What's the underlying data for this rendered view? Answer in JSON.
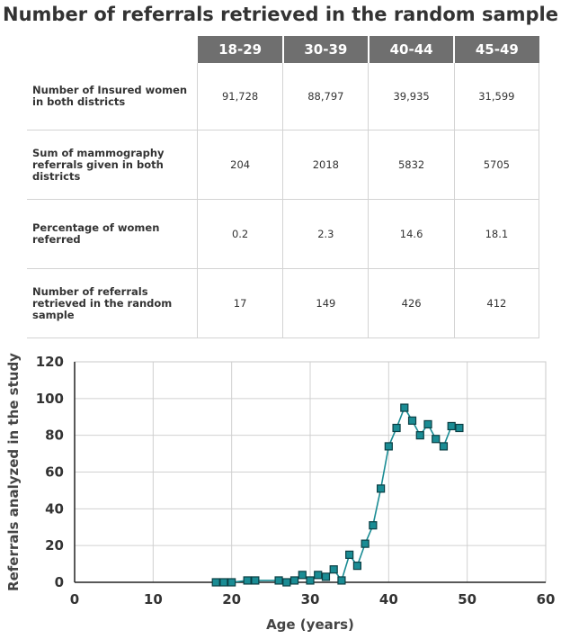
{
  "title": "Number of referrals retrieved in the random sample",
  "table": {
    "columns": [
      "18-29",
      "30-39",
      "40-44",
      "45-49"
    ],
    "rows": [
      {
        "label": "Number of Insured women in both districts",
        "values": [
          "91,728",
          "88,797",
          "39,935",
          "31,599"
        ]
      },
      {
        "label": "Sum of mammography referrals given in both districts",
        "values": [
          "204",
          "2018",
          "5832",
          "5705"
        ]
      },
      {
        "label": "Percentage of women referred",
        "values": [
          "0.2",
          "2.3",
          "14.6",
          "18.1"
        ]
      },
      {
        "label": "Number of referrals retrieved in the random sample",
        "values": [
          "17",
          "149",
          "426",
          "412"
        ]
      }
    ]
  },
  "colors": {
    "header_bg": "#6f6f6f",
    "marker_fill": "#1a8c94",
    "line": "#1a8c94",
    "grid": "#d0d0d0"
  },
  "chart_data": {
    "type": "line",
    "title": "",
    "xlabel": "Age (years)",
    "ylabel": "Referrals analyzed in the study",
    "xlim": [
      0,
      60
    ],
    "ylim": [
      0,
      120
    ],
    "xticks": [
      0,
      10,
      20,
      30,
      40,
      50,
      60
    ],
    "yticks": [
      0,
      20,
      40,
      60,
      80,
      100,
      120
    ],
    "grid": true,
    "series": [
      {
        "name": "Referrals",
        "x": [
          18,
          19,
          20,
          22,
          23,
          26,
          27,
          28,
          29,
          30,
          31,
          32,
          33,
          34,
          35,
          36,
          37,
          38,
          39,
          40,
          41,
          42,
          43,
          44,
          45,
          46,
          47,
          48,
          49
        ],
        "y": [
          0,
          0,
          0,
          1,
          1,
          1,
          0,
          1,
          4,
          1,
          4,
          3,
          7,
          1,
          15,
          9,
          21,
          31,
          51,
          74,
          84,
          95,
          88,
          80,
          86,
          78,
          74,
          85,
          84
        ]
      }
    ]
  }
}
